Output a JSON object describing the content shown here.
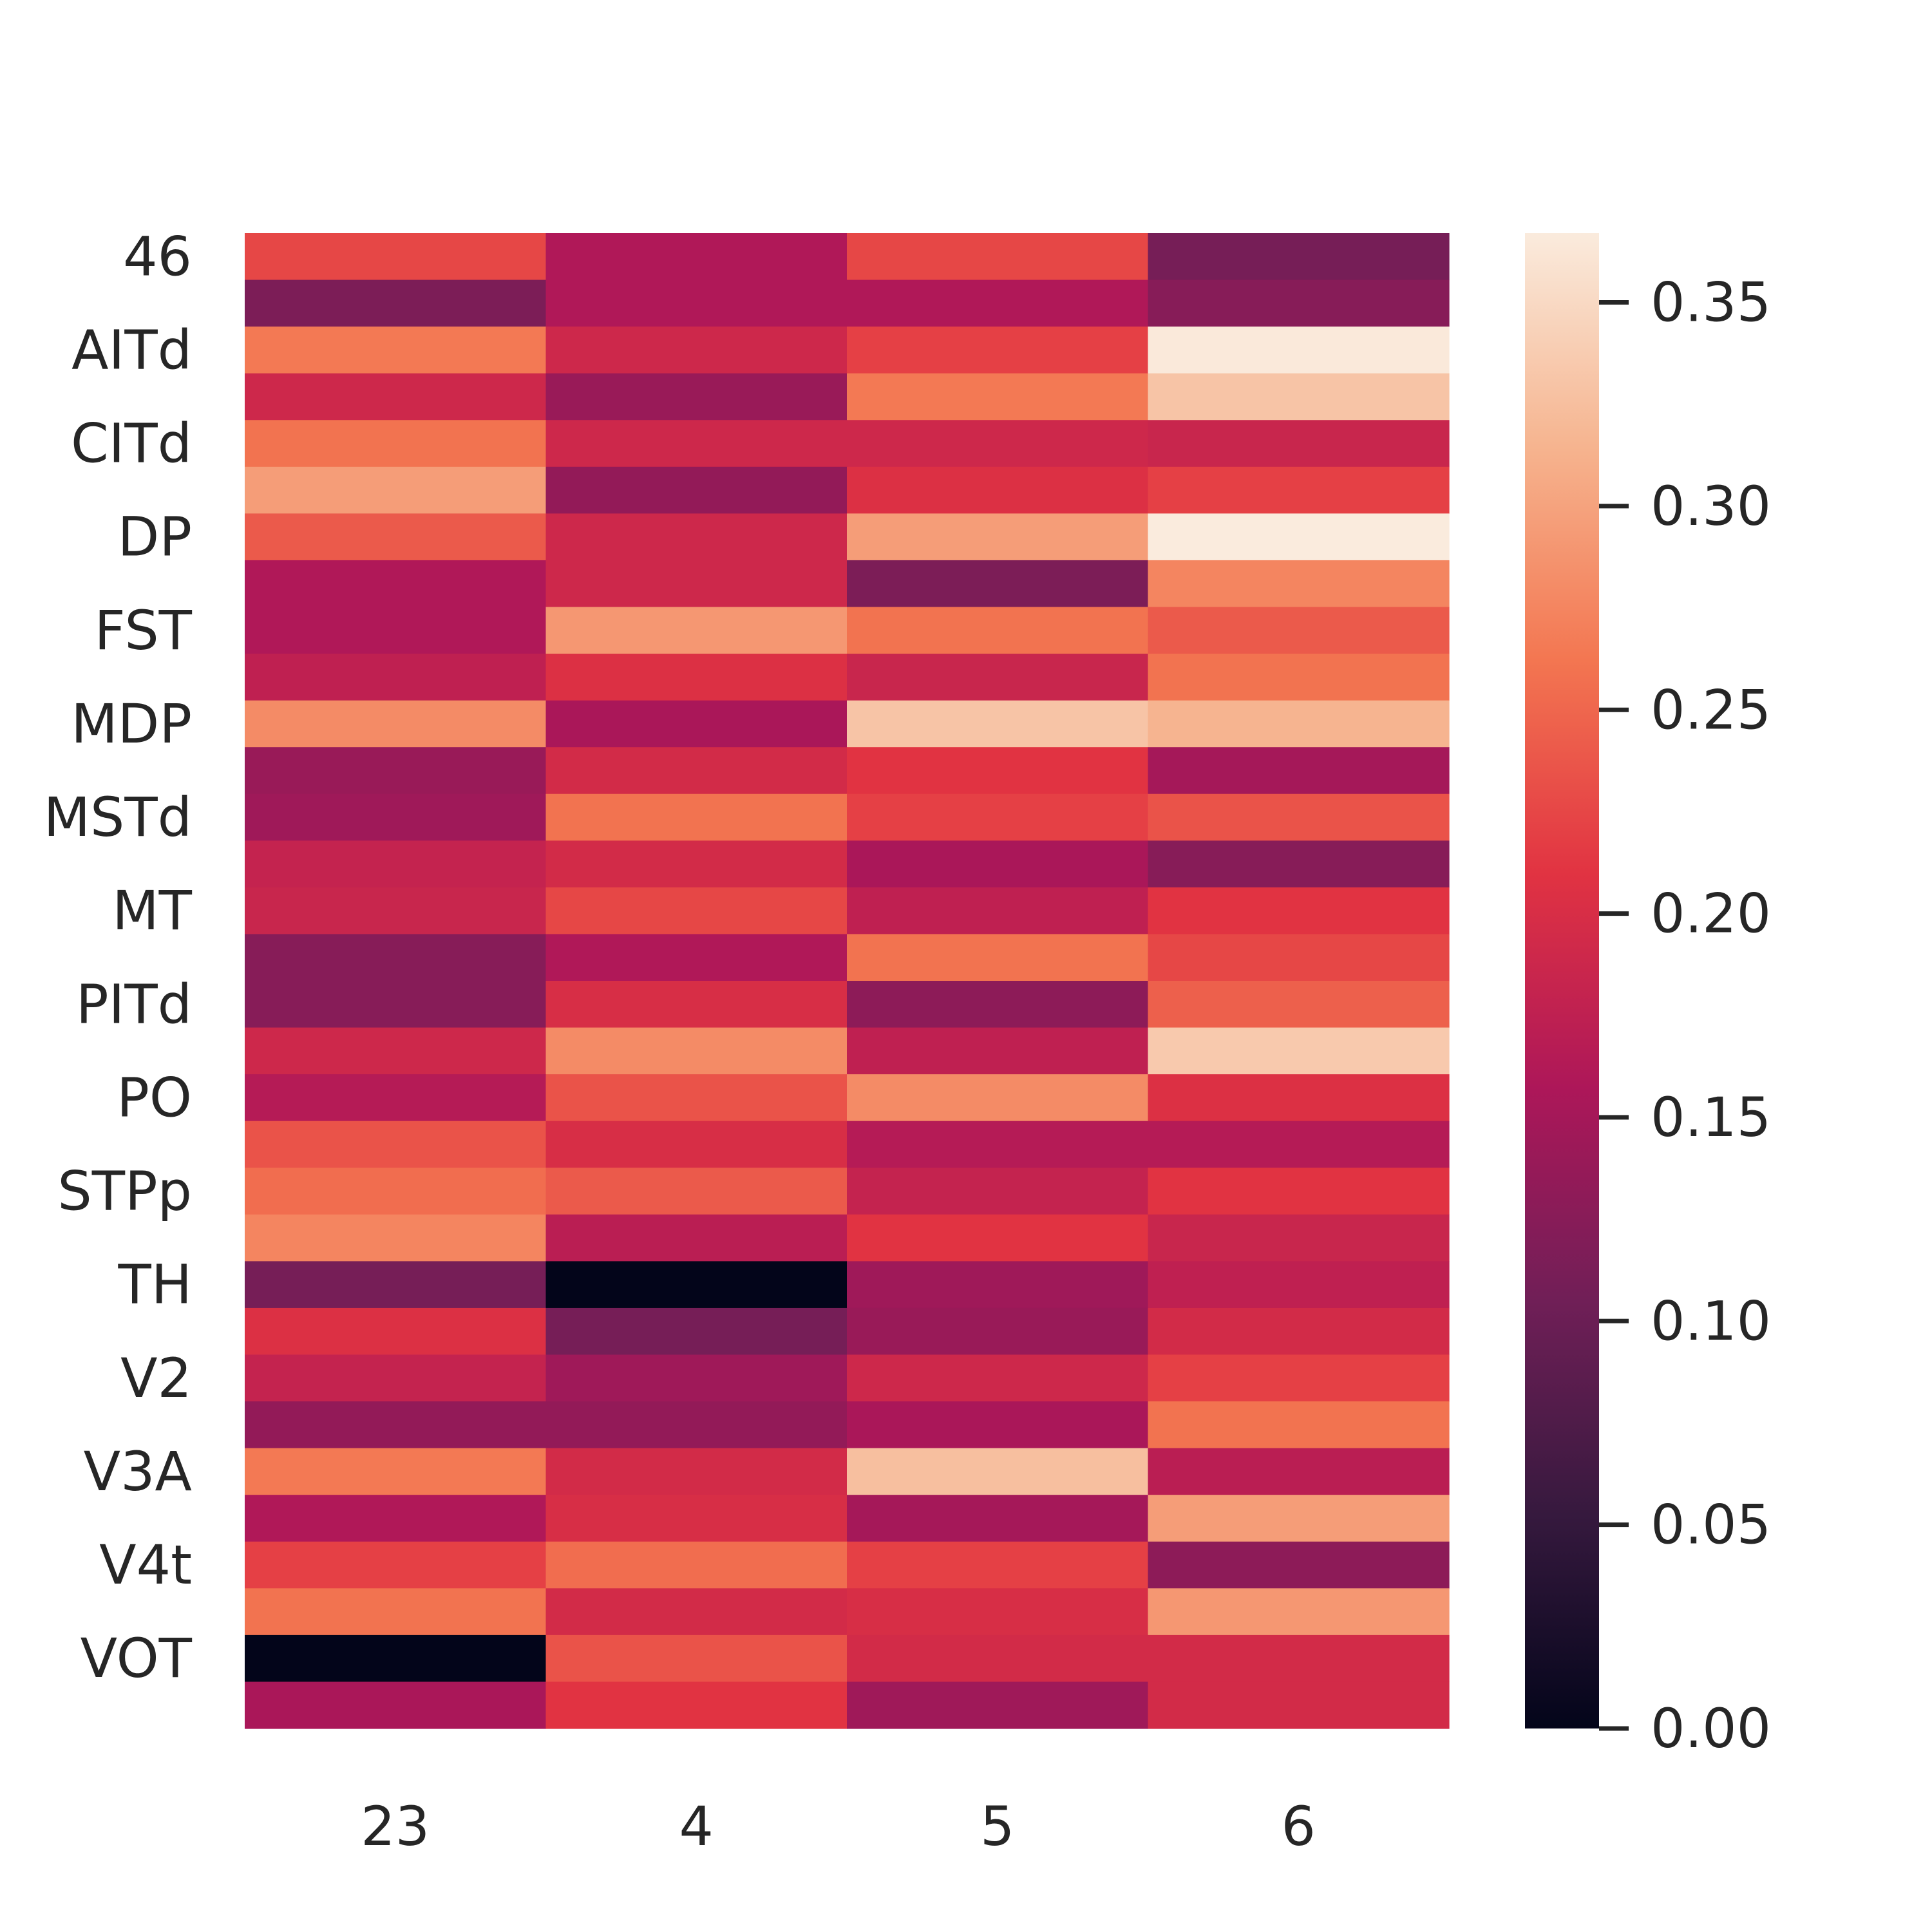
{
  "chart_data": {
    "type": "heatmap",
    "title": "",
    "xlabel": "",
    "ylabel": "",
    "x_categories": [
      "23",
      "4",
      "5",
      "6"
    ],
    "y_tick_labels": [
      "46",
      "AITd",
      "CITd",
      "DP",
      "FST",
      "MDP",
      "MSTd",
      "MT",
      "PITd",
      "PO",
      "STPp",
      "TH",
      "V2",
      "V3A",
      "V4t",
      "VOT"
    ],
    "values": [
      [
        0.225,
        0.16,
        0.225,
        0.11
      ],
      [
        0.115,
        0.16,
        0.16,
        0.125
      ],
      [
        0.265,
        0.19,
        0.22,
        0.365
      ],
      [
        0.19,
        0.14,
        0.265,
        0.33
      ],
      [
        0.26,
        0.19,
        0.19,
        0.185
      ],
      [
        0.295,
        0.135,
        0.205,
        0.22
      ],
      [
        0.24,
        0.19,
        0.295,
        0.37
      ],
      [
        0.16,
        0.19,
        0.115,
        0.275
      ],
      [
        0.16,
        0.29,
        0.26,
        0.24
      ],
      [
        0.175,
        0.205,
        0.185,
        0.26
      ],
      [
        0.28,
        0.155,
        0.33,
        0.315
      ],
      [
        0.14,
        0.195,
        0.21,
        0.15
      ],
      [
        0.145,
        0.26,
        0.22,
        0.235
      ],
      [
        0.18,
        0.195,
        0.155,
        0.125
      ],
      [
        0.185,
        0.225,
        0.175,
        0.21
      ],
      [
        0.125,
        0.16,
        0.26,
        0.225
      ],
      [
        0.125,
        0.2,
        0.13,
        0.245
      ],
      [
        0.19,
        0.28,
        0.175,
        0.335
      ],
      [
        0.165,
        0.235,
        0.28,
        0.205
      ],
      [
        0.235,
        0.2,
        0.165,
        0.165
      ],
      [
        0.255,
        0.24,
        0.18,
        0.21
      ],
      [
        0.275,
        0.17,
        0.21,
        0.185
      ],
      [
        0.11,
        0.0,
        0.145,
        0.175
      ],
      [
        0.205,
        0.11,
        0.14,
        0.195
      ],
      [
        0.18,
        0.145,
        0.19,
        0.22
      ],
      [
        0.135,
        0.135,
        0.155,
        0.26
      ],
      [
        0.265,
        0.195,
        0.325,
        0.17
      ],
      [
        0.16,
        0.2,
        0.15,
        0.295
      ],
      [
        0.22,
        0.255,
        0.22,
        0.13
      ],
      [
        0.26,
        0.195,
        0.2,
        0.29
      ],
      [
        0.0,
        0.235,
        0.195,
        0.195
      ],
      [
        0.155,
        0.21,
        0.145,
        0.195
      ]
    ],
    "colorbar": {
      "vmin": 0.0,
      "vmax": 0.367,
      "tick_values": [
        0.0,
        0.05,
        0.1,
        0.15,
        0.2,
        0.25,
        0.3,
        0.35
      ],
      "tick_labels": [
        "0.00",
        "0.05",
        "0.10",
        "0.15",
        "0.20",
        "0.25",
        "0.30",
        "0.35"
      ],
      "colormap": "rocket",
      "stops": [
        "#03051a",
        "#36193e",
        "#701f57",
        "#ad1759",
        "#e13342",
        "#f37651",
        "#f6b48f",
        "#faebdd"
      ]
    },
    "grid": false,
    "legend": "colorbar-right"
  }
}
